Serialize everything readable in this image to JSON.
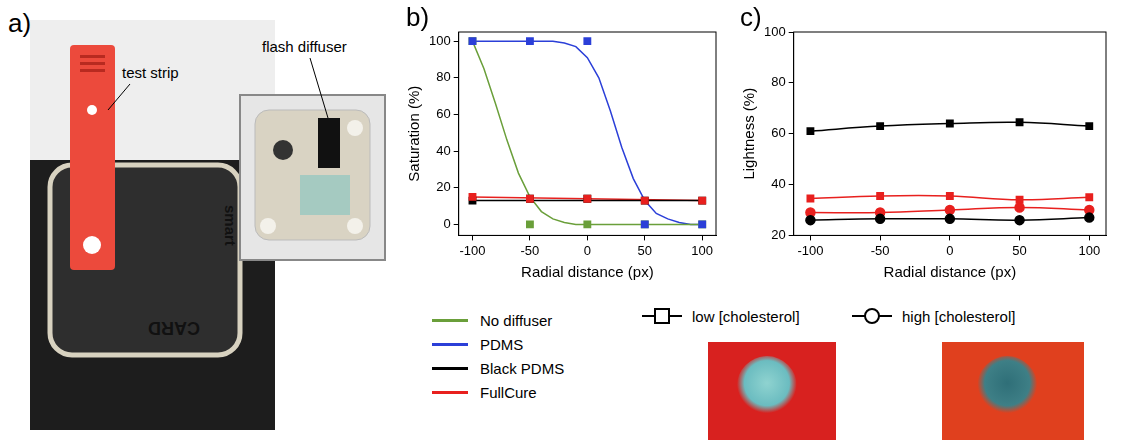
{
  "panel_a": {
    "panel_label": "a)",
    "labels": [
      "test strip",
      "flash diffuser"
    ],
    "device_text": [
      "smart",
      "CARD"
    ]
  },
  "legend": {
    "series": [
      {
        "name": "No diffuser",
        "color": "#6a9f3a"
      },
      {
        "name": "PDMS",
        "color": "#2b3fd8"
      },
      {
        "name": "Black PDMS",
        "color": "#000000"
      },
      {
        "name": "FullCure",
        "color": "#e8201e"
      }
    ],
    "markers": [
      {
        "marker": "square",
        "label": "low [cholesterol]"
      },
      {
        "marker": "circle",
        "label": "high [cholesterol]"
      }
    ]
  },
  "chart_data": [
    {
      "panel_label": "b)",
      "type": "scatter",
      "x_label": "Radial distance (px)",
      "y_label": "Saturation (%)",
      "x": [
        -100,
        -50,
        0,
        50,
        100
      ],
      "xlim": [
        -112,
        112
      ],
      "xticks": [
        -100,
        -50,
        0,
        50,
        100
      ],
      "ylim": [
        -6,
        105
      ],
      "yticks": [
        0,
        20,
        40,
        60,
        80,
        100
      ],
      "series": [
        {
          "name": "No diffuser",
          "color": "#6a9f3a",
          "marker": "square",
          "line_style": "solid",
          "values": [
            100,
            0,
            0,
            0,
            0
          ],
          "fit": {
            "x": [
              -100,
              -90,
              -80,
              -70,
              -60,
              -50,
              -40,
              -30,
              -20,
              -10,
              0,
              10,
              20,
              30,
              40,
              50,
              60,
              70,
              80,
              90,
              100
            ],
            "values": [
              100,
              85,
              66,
              46,
              28,
              15,
              7,
              3,
              1,
              0,
              0,
              0,
              0,
              0,
              0,
              0,
              0,
              0,
              0,
              0,
              0
            ]
          }
        },
        {
          "name": "Black PDMS",
          "color": "#000000",
          "marker": "square",
          "line_style": "solid",
          "values": [
            13,
            14,
            14,
            13,
            13
          ],
          "fit": {
            "x": [
              -100,
              100
            ],
            "values": [
              13,
              13
            ]
          }
        },
        {
          "name": "FullCure",
          "color": "#e8201e",
          "marker": "square",
          "line_style": "solid",
          "values": [
            15,
            14,
            14,
            13,
            13
          ],
          "fit": {
            "x": [
              -100,
              100
            ],
            "values": [
              15,
              13
            ]
          }
        },
        {
          "name": "PDMS",
          "color": "#2b3fd8",
          "marker": "square",
          "line_style": "solid",
          "values": [
            100,
            100,
            100,
            0,
            0
          ],
          "fit": {
            "x": [
              -100,
              -90,
              -80,
              -70,
              -60,
              -50,
              -40,
              -30,
              -20,
              -10,
              0,
              10,
              20,
              30,
              40,
              50,
              60,
              70,
              80,
              90,
              100
            ],
            "values": [
              100,
              100,
              100,
              100,
              100,
              100,
              100,
              100,
              99,
              97,
              91,
              80,
              62,
              42,
              25,
              13,
              6,
              3,
              1,
              0,
              0
            ]
          }
        }
      ]
    },
    {
      "panel_label": "c)",
      "type": "line",
      "x_label": "Radial distance (px)",
      "y_label": "Lightness (%)",
      "x": [
        -100,
        -50,
        0,
        50,
        100
      ],
      "xlim": [
        -112,
        112
      ],
      "xticks": [
        -100,
        -50,
        0,
        50,
        100
      ],
      "ylim": [
        20,
        100
      ],
      "yticks": [
        20,
        40,
        60,
        80,
        100
      ],
      "series": [
        {
          "name": "Black PDMS",
          "color": "#000000",
          "marker": "square",
          "line_style": "smooth",
          "values": [
            61,
            63,
            64,
            64.5,
            63
          ]
        },
        {
          "name": "FullCure",
          "color": "#e8201e",
          "marker": "square",
          "line_style": "smooth",
          "values": [
            34.5,
            35.5,
            35.5,
            34,
            35
          ]
        },
        {
          "name": "FullCure",
          "color": "#e8201e",
          "marker": "circle",
          "line_style": "smooth",
          "values": [
            29,
            29,
            30,
            31,
            30
          ]
        },
        {
          "name": "Black PDMS",
          "color": "#000000",
          "marker": "circle",
          "line_style": "smooth",
          "values": [
            26,
            26.5,
            26.5,
            26,
            27
          ]
        }
      ]
    }
  ]
}
